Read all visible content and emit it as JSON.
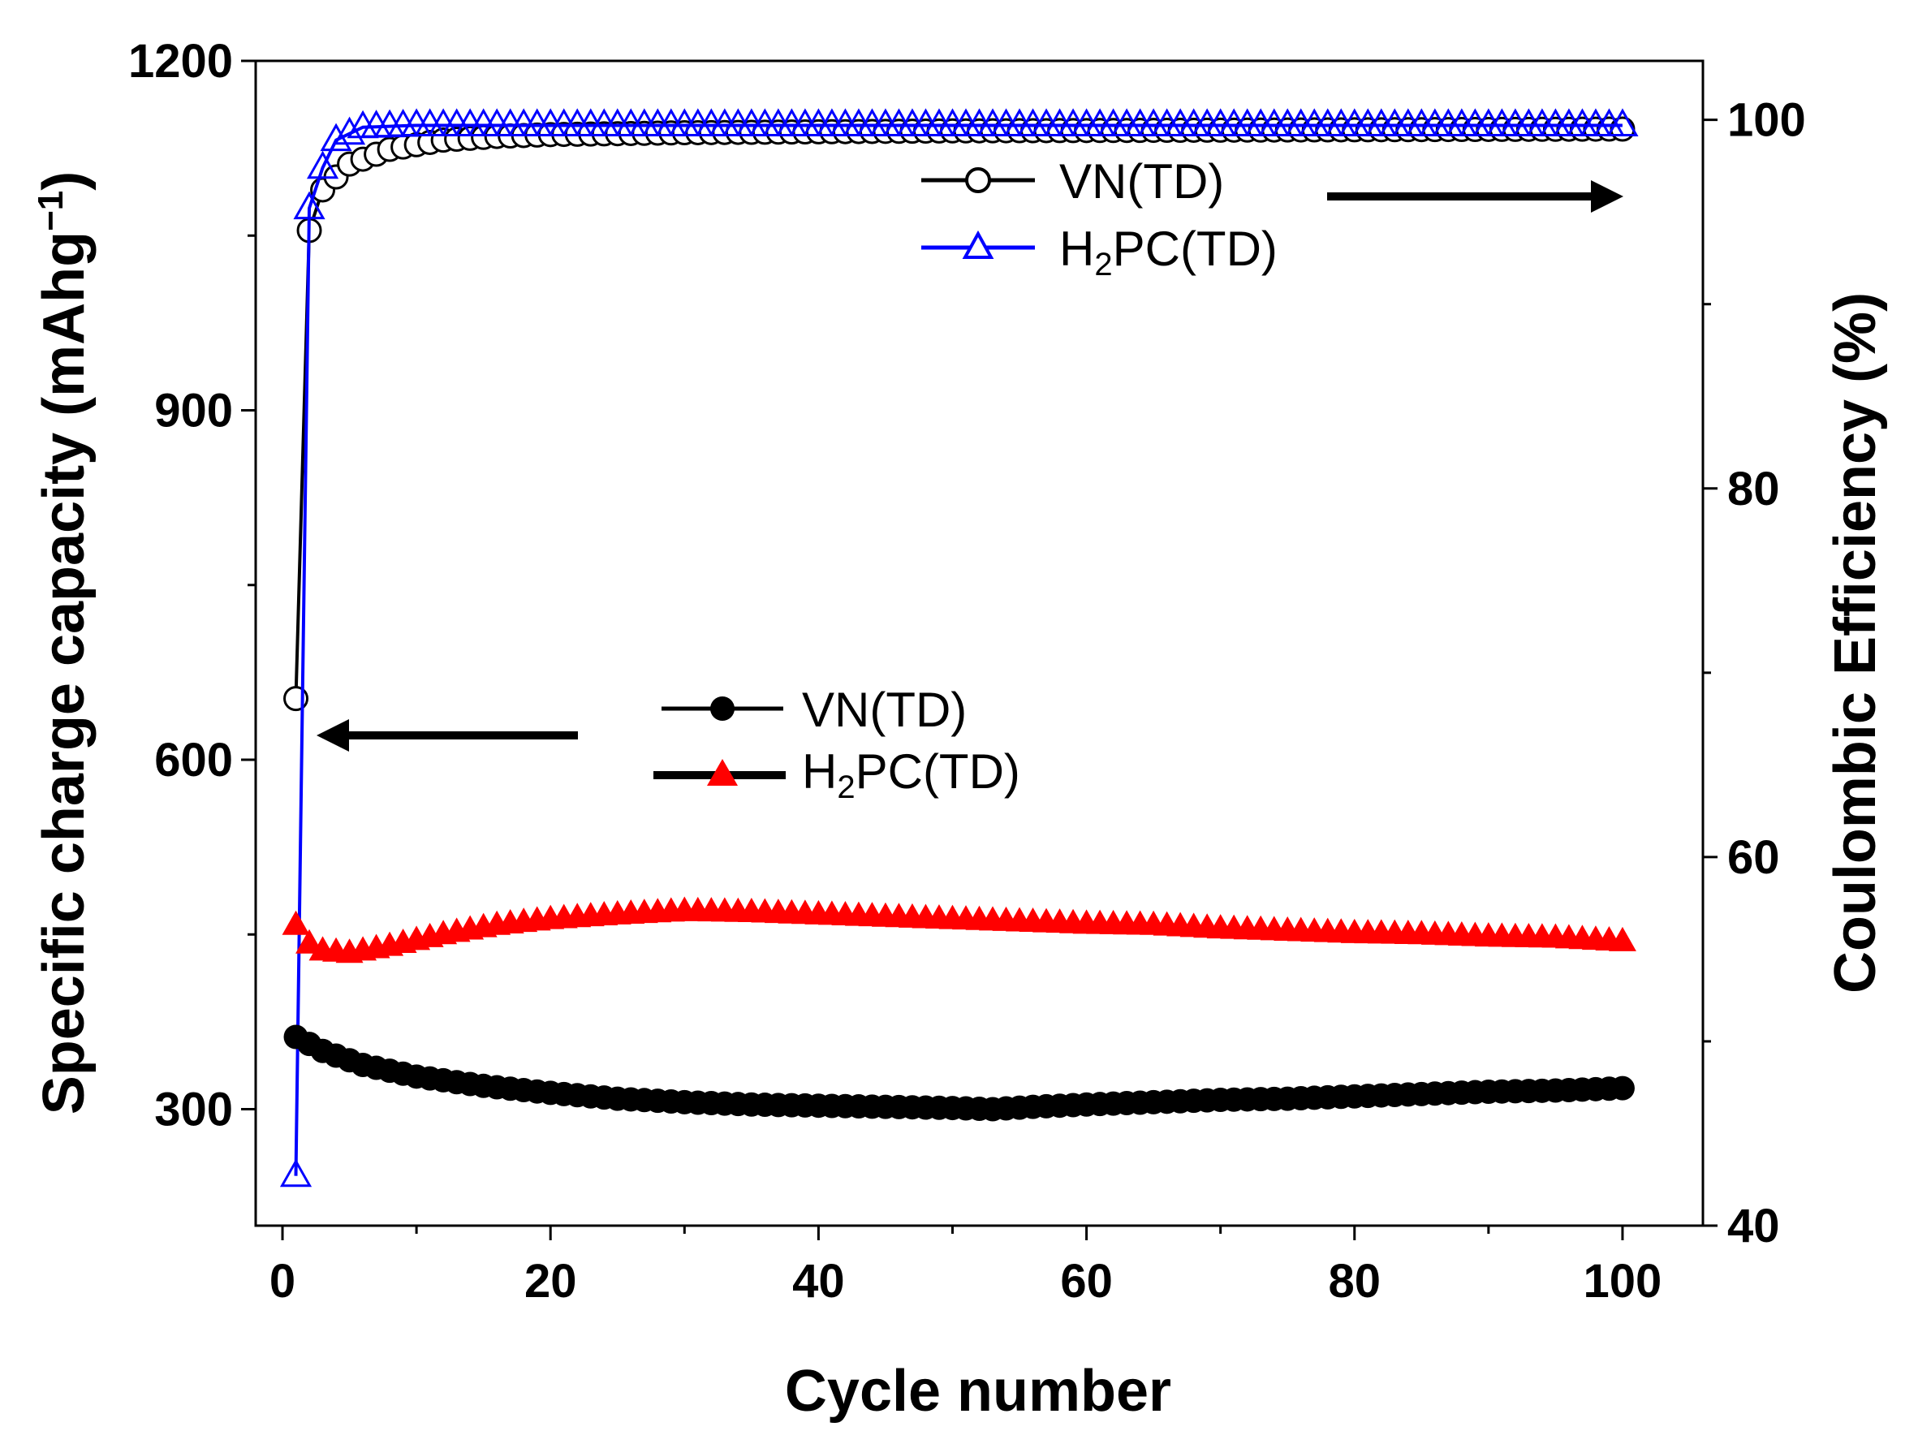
{
  "chart_data": {
    "type": "scatter",
    "xlabel": "Cycle number",
    "ylabel_left": "Specific charge capacity (mAhg",
    "ylabel_left_sup": "−1",
    "ylabel_left_close": ")",
    "ylabel_right": "Coulombic Efficiency (%)",
    "xlim": [
      -2,
      106
    ],
    "ylim_left": [
      200,
      1200
    ],
    "ylim_right": [
      40,
      103.2
    ],
    "x_ticks": [
      0,
      20,
      40,
      60,
      80,
      100
    ],
    "y_left_ticks": [
      300,
      600,
      900,
      1200
    ],
    "y_right_ticks": [
      40,
      60,
      80,
      100
    ],
    "legend_efficiency": [
      {
        "label": "VN(TD)",
        "marker": "open-circle",
        "color": "#000000"
      },
      {
        "label_main": "H",
        "label_sub": "2",
        "label_rest": "PC(TD)",
        "marker": "open-triangle",
        "color": "#0000ff"
      }
    ],
    "legend_capacity": [
      {
        "label": "VN(TD)",
        "marker": "filled-circle",
        "color": "#000000"
      },
      {
        "label_main": "H",
        "label_sub": "2",
        "label_rest": "PC(TD)",
        "marker": "filled-triangle",
        "color": "#ff0000"
      }
    ],
    "arrow_efficiency_direction": "right",
    "arrow_capacity_direction": "left",
    "series": [
      {
        "name": "VN(TD) capacity",
        "axis": "left",
        "marker": "filled-circle",
        "color": "#000000",
        "anchors": [
          [
            1,
            362
          ],
          [
            3,
            350
          ],
          [
            6,
            338
          ],
          [
            10,
            328
          ],
          [
            15,
            320
          ],
          [
            20,
            314
          ],
          [
            25,
            309
          ],
          [
            30,
            306
          ],
          [
            35,
            304
          ],
          [
            40,
            303
          ],
          [
            45,
            302
          ],
          [
            50,
            301
          ],
          [
            53,
            300
          ],
          [
            56,
            302
          ],
          [
            60,
            304
          ],
          [
            65,
            306
          ],
          [
            70,
            308
          ],
          [
            75,
            309
          ],
          [
            80,
            311
          ],
          [
            85,
            313
          ],
          [
            90,
            315
          ],
          [
            95,
            316
          ],
          [
            100,
            318
          ]
        ]
      },
      {
        "name": "H2PC(TD) capacity",
        "axis": "left",
        "marker": "filled-triangle",
        "color": "#ff0000",
        "anchors": [
          [
            1,
            458
          ],
          [
            2,
            442
          ],
          [
            3,
            436
          ],
          [
            5,
            434
          ],
          [
            8,
            440
          ],
          [
            12,
            450
          ],
          [
            16,
            458
          ],
          [
            20,
            463
          ],
          [
            25,
            467
          ],
          [
            30,
            470
          ],
          [
            35,
            469
          ],
          [
            40,
            467
          ],
          [
            45,
            465
          ],
          [
            50,
            463
          ],
          [
            55,
            461
          ],
          [
            60,
            459
          ],
          [
            65,
            458
          ],
          [
            70,
            455
          ],
          [
            75,
            453
          ],
          [
            80,
            451
          ],
          [
            85,
            450
          ],
          [
            90,
            448
          ],
          [
            95,
            447
          ],
          [
            100,
            444
          ]
        ]
      },
      {
        "name": "VN(TD) efficiency",
        "axis": "right",
        "marker": "open-circle",
        "color": "#000000",
        "anchors": [
          [
            1,
            68.6
          ],
          [
            2,
            94
          ],
          [
            3,
            96.2
          ],
          [
            5,
            97.6
          ],
          [
            8,
            98.4
          ],
          [
            12,
            98.9
          ],
          [
            16,
            99.1
          ],
          [
            20,
            99.2
          ],
          [
            30,
            99.3
          ],
          [
            50,
            99.4
          ],
          [
            100,
            99.5
          ]
        ]
      },
      {
        "name": "H2PC(TD) efficiency",
        "axis": "right",
        "marker": "open-triangle",
        "color": "#0000ff",
        "anchors": [
          [
            1,
            42.7
          ],
          [
            2,
            95.2
          ],
          [
            3,
            97.4
          ],
          [
            4,
            98.9
          ],
          [
            6,
            99.6
          ],
          [
            10,
            99.7
          ],
          [
            100,
            99.7
          ]
        ]
      }
    ]
  }
}
